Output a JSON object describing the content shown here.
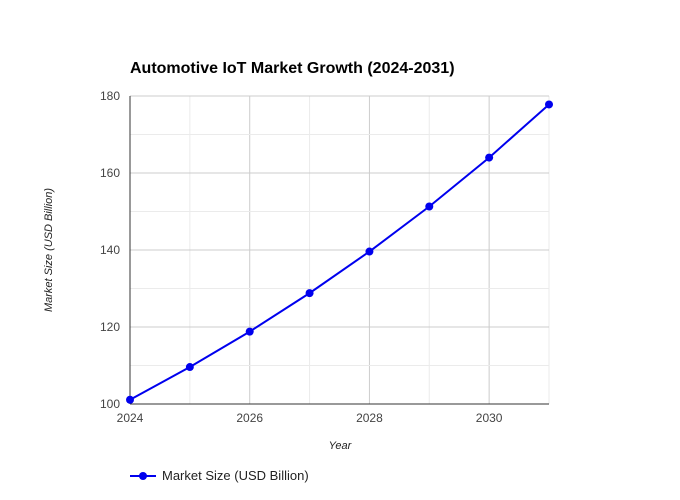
{
  "chart_data": {
    "type": "line",
    "title": "Automotive IoT Market Growth (2024-2031)",
    "xlabel": "Year",
    "ylabel": "Market Size (USD Billion)",
    "x": [
      2024,
      2025,
      2026,
      2027,
      2028,
      2029,
      2030,
      2031
    ],
    "xlim": [
      2024,
      2031
    ],
    "ylim": [
      100,
      180
    ],
    "x_ticks": [
      "2024",
      "2026",
      "2028",
      "2030"
    ],
    "y_ticks": [
      "100",
      "120",
      "140",
      "160",
      "180"
    ],
    "grid": true,
    "legend_position": "bottom-left",
    "series": [
      {
        "name": "Market Size (USD Billion)",
        "color": "#0000ee",
        "values": [
          101.1,
          109.6,
          118.8,
          128.8,
          139.6,
          151.3,
          164.0,
          177.8
        ]
      }
    ]
  }
}
